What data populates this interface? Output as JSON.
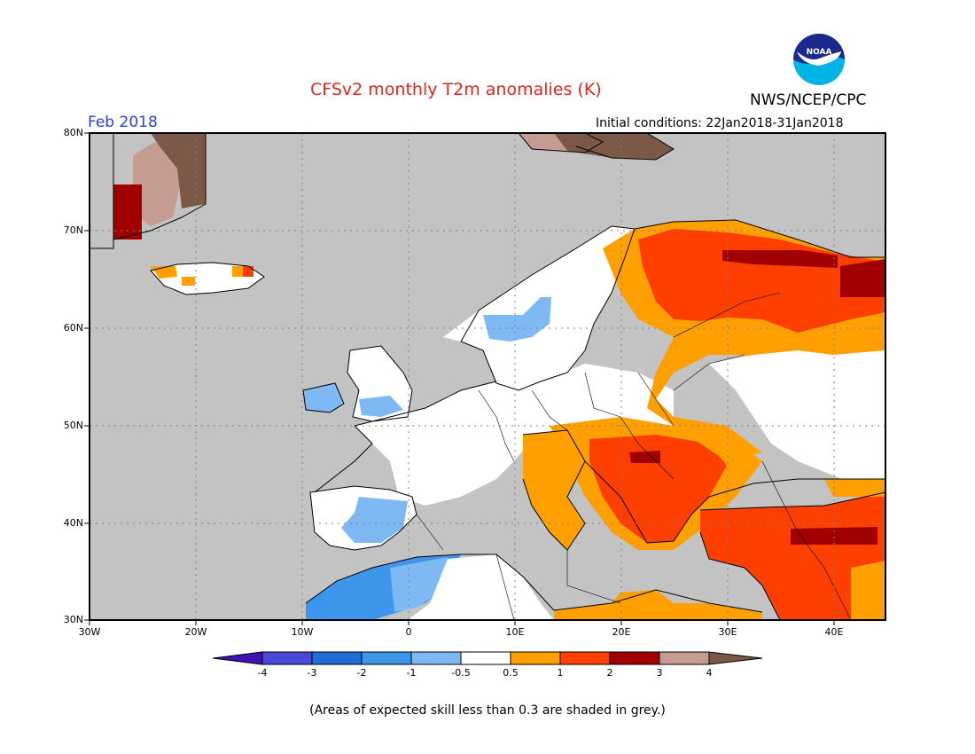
{
  "title": "CFSv2 monthly T2m anomalies (K)",
  "organization": "NWS/NCEP/CPC",
  "logo_text": "NOAA",
  "period": "Feb 2018",
  "initial_conditions": "Initial conditions: 22Jan2018-31Jan2018",
  "footnote": "(Areas of expected skill less than 0.3 are shaded in grey.)",
  "map": {
    "region": "Europe",
    "lon_range": [
      -30,
      45
    ],
    "lat_range": [
      30,
      80
    ],
    "lat_labels": [
      "30N",
      "40N",
      "50N",
      "60N",
      "70N",
      "80N"
    ],
    "lon_labels": [
      "30W",
      "20W",
      "10W",
      "0",
      "10E",
      "20E",
      "30E",
      "40E"
    ],
    "low_skill_color": "#c3c3c3"
  },
  "colorbar": {
    "labels": [
      "-4",
      "-3",
      "-2",
      "-1",
      "-0.5",
      "0.5",
      "1",
      "2",
      "3",
      "4"
    ],
    "colors": [
      "#3f12b4",
      "#4a48d8",
      "#1f6ed8",
      "#3d95ec",
      "#7eb9f4",
      "#ffffff",
      "#ffa000",
      "#ff3f00",
      "#a00000",
      "#c59b92",
      "#7b5848"
    ]
  }
}
